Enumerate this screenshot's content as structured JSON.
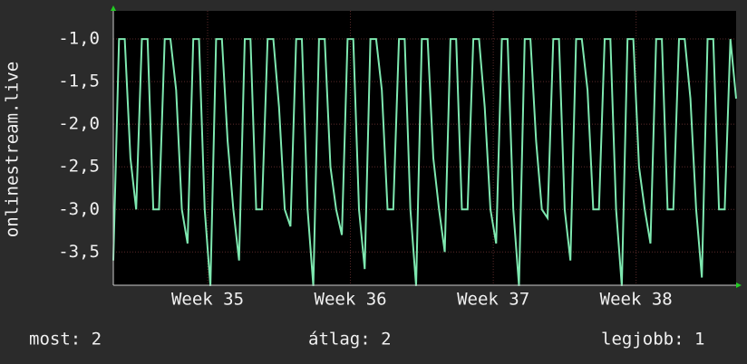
{
  "chart_data": {
    "type": "line",
    "ylabel": "onlinestream.live",
    "x": [
      34.34,
      34.38,
      34.42,
      34.46,
      34.5,
      34.54,
      34.58,
      34.62,
      34.66,
      34.7,
      34.74,
      34.78,
      34.82,
      34.86,
      34.9,
      34.94,
      34.98,
      35.02,
      35.06,
      35.1,
      35.14,
      35.18,
      35.22,
      35.26,
      35.3,
      35.34,
      35.38,
      35.42,
      35.46,
      35.5,
      35.54,
      35.58,
      35.62,
      35.66,
      35.7,
      35.74,
      35.78,
      35.82,
      35.86,
      35.9,
      35.94,
      35.98,
      36.02,
      36.06,
      36.1,
      36.14,
      36.18,
      36.22,
      36.26,
      36.3,
      36.34,
      36.38,
      36.42,
      36.46,
      36.5,
      36.54,
      36.58,
      36.62,
      36.66,
      36.7,
      36.74,
      36.78,
      36.82,
      36.86,
      36.9,
      36.94,
      36.98,
      37.02,
      37.06,
      37.1,
      37.14,
      37.18,
      37.22,
      37.26,
      37.3,
      37.34,
      37.38,
      37.42,
      37.46,
      37.5,
      37.54,
      37.58,
      37.62,
      37.66,
      37.7,
      37.74,
      37.78,
      37.82,
      37.86,
      37.9,
      37.94,
      37.98,
      38.02,
      38.06,
      38.1,
      38.14,
      38.18,
      38.22,
      38.26,
      38.3,
      38.34,
      38.38,
      38.42,
      38.46,
      38.5,
      38.54,
      38.58,
      38.62,
      38.66,
      38.7
    ],
    "series": [
      {
        "name": "onlinestream.live",
        "color": "#7ee8b0",
        "values": [
          -3.6,
          -1.0,
          -1.0,
          -2.4,
          -3.0,
          -1.0,
          -1.0,
          -3.0,
          -3.0,
          -1.0,
          -1.0,
          -1.6,
          -3.0,
          -3.4,
          -1.0,
          -1.0,
          -3.0,
          -3.9,
          -1.0,
          -1.0,
          -2.2,
          -3.0,
          -3.6,
          -1.0,
          -1.0,
          -3.0,
          -3.0,
          -1.0,
          -1.0,
          -1.8,
          -3.0,
          -3.2,
          -1.0,
          -1.0,
          -3.0,
          -3.9,
          -1.0,
          -1.0,
          -2.5,
          -3.0,
          -3.3,
          -1.0,
          -1.0,
          -3.0,
          -3.7,
          -1.0,
          -1.0,
          -1.6,
          -3.0,
          -3.0,
          -1.0,
          -1.0,
          -3.0,
          -3.9,
          -1.0,
          -1.0,
          -2.4,
          -3.0,
          -3.5,
          -1.0,
          -1.0,
          -3.0,
          -3.0,
          -1.0,
          -1.0,
          -1.8,
          -3.0,
          -3.4,
          -1.0,
          -1.0,
          -3.0,
          -3.9,
          -1.0,
          -1.0,
          -2.2,
          -3.0,
          -3.1,
          -1.0,
          -1.0,
          -3.0,
          -3.6,
          -1.0,
          -1.0,
          -1.6,
          -3.0,
          -3.0,
          -1.0,
          -1.0,
          -3.0,
          -3.9,
          -1.0,
          -1.0,
          -2.5,
          -3.0,
          -3.4,
          -1.0,
          -1.0,
          -3.0,
          -3.0,
          -1.0,
          -1.0,
          -1.7,
          -3.0,
          -3.8,
          -1.0,
          -1.0,
          -3.0,
          -3.0,
          -1.0,
          -1.7
        ]
      }
    ],
    "xlim": [
      34.34,
      38.7
    ],
    "xticks": [
      {
        "value": 35,
        "label": "Week 35"
      },
      {
        "value": 36,
        "label": "Week 36"
      },
      {
        "value": 37,
        "label": "Week 37"
      },
      {
        "value": 38,
        "label": "Week 38"
      }
    ],
    "ylim": [
      -3.89,
      -0.67
    ],
    "yticks": [
      {
        "value": -1.0,
        "label": "-1,0"
      },
      {
        "value": -1.5,
        "label": "-1,5"
      },
      {
        "value": -2.0,
        "label": "-2,0"
      },
      {
        "value": -2.5,
        "label": "-2,5"
      },
      {
        "value": -3.0,
        "label": "-3,0"
      },
      {
        "value": -3.5,
        "label": "-3,5"
      }
    ],
    "grid": true,
    "footer": [
      "most: 2",
      "átlag: 2",
      "legjobb: 1"
    ]
  }
}
